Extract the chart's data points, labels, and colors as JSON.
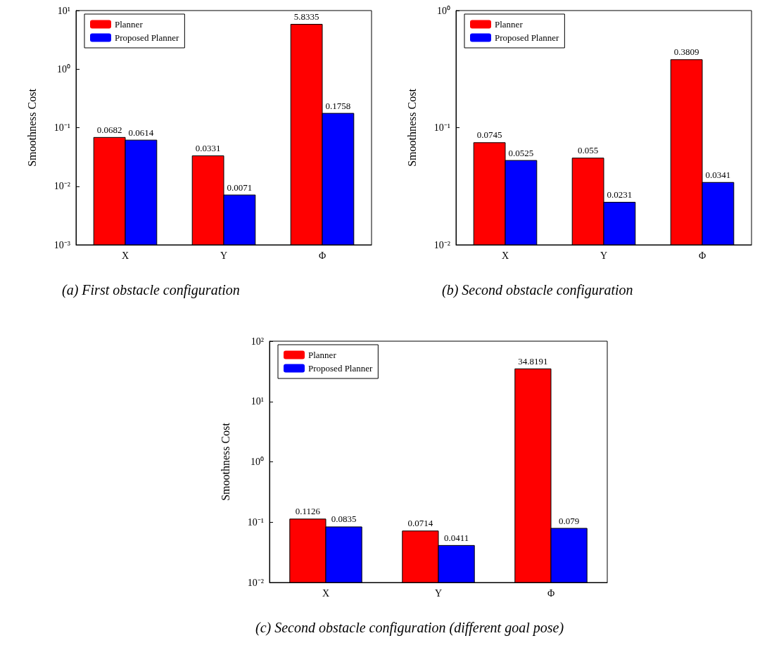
{
  "chart_data": [
    {
      "type": "bar",
      "ylabel": "Smoothness Cost",
      "categories": [
        "X",
        "Y",
        "Φ"
      ],
      "series": [
        {
          "name": "Planner",
          "color": "#ff0000",
          "values": [
            0.0682,
            0.0331,
            5.8335
          ]
        },
        {
          "name": "Proposed Planner",
          "color": "#0000ff",
          "values": [
            0.0614,
            0.0071,
            0.1758
          ]
        }
      ],
      "log": true,
      "ylim": [
        0.001,
        10
      ],
      "yticks": [
        {
          "value": 0.001,
          "label": "10⁻³"
        },
        {
          "value": 0.01,
          "label": "10⁻²"
        },
        {
          "value": 0.1,
          "label": "10⁻¹"
        },
        {
          "value": 1,
          "label": "10⁰"
        },
        {
          "value": 10,
          "label": "10¹"
        }
      ],
      "data_labels": true,
      "legend": "top left",
      "grid": false,
      "annotations": [
        "(a) First obstacle configuration"
      ]
    },
    {
      "type": "bar",
      "ylabel": "Smoothness Cost",
      "categories": [
        "X",
        "Y",
        "Φ"
      ],
      "series": [
        {
          "name": "Planner",
          "color": "#ff0000",
          "values": [
            0.0745,
            0.055,
            0.3809
          ]
        },
        {
          "name": "Proposed Planner",
          "color": "#0000ff",
          "values": [
            0.0525,
            0.0231,
            0.0341
          ]
        }
      ],
      "log": true,
      "ylim": [
        0.01,
        1
      ],
      "yticks": [
        {
          "value": 0.01,
          "label": "10⁻²"
        },
        {
          "value": 0.1,
          "label": "10⁻¹"
        },
        {
          "value": 1,
          "label": "10⁰"
        }
      ],
      "data_labels": true,
      "legend": "top left",
      "grid": false,
      "annotations": [
        "(b) Second obstacle configuration"
      ]
    },
    {
      "type": "bar",
      "ylabel": "Smoothness Cost",
      "categories": [
        "X",
        "Y",
        "Φ"
      ],
      "series": [
        {
          "name": "Planner",
          "color": "#ff0000",
          "values": [
            0.1126,
            0.0714,
            34.8191
          ]
        },
        {
          "name": "Proposed Planner",
          "color": "#0000ff",
          "values": [
            0.0835,
            0.0411,
            0.079
          ]
        }
      ],
      "log": true,
      "ylim": [
        0.01,
        100
      ],
      "yticks": [
        {
          "value": 0.01,
          "label": "10⁻²"
        },
        {
          "value": 0.1,
          "label": "10⁻¹"
        },
        {
          "value": 1,
          "label": "10⁰"
        },
        {
          "value": 10,
          "label": "10¹"
        },
        {
          "value": 100,
          "label": "10²"
        }
      ],
      "data_labels": true,
      "legend": "top left",
      "grid": false,
      "annotations": [
        "(c) Second obstacle configuration (different goal pose)"
      ]
    }
  ]
}
